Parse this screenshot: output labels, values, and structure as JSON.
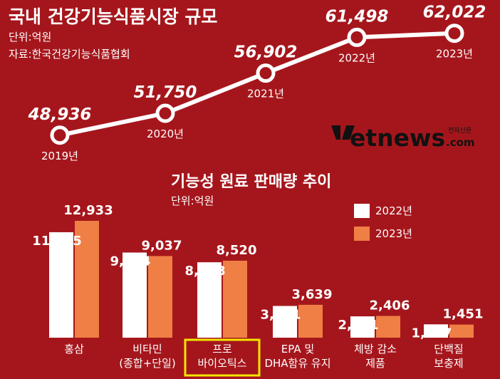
{
  "brand": {
    "logo_text": "etnews",
    "logo_suffix": ".com",
    "logo_small": "전자신문"
  },
  "chart_data": [
    {
      "type": "line",
      "title": "국내 건강기능식품시장 규모",
      "unit": "단위:억원",
      "source": "자료:한국건강기능식품협회",
      "x": [
        "2019년",
        "2020년",
        "2021년",
        "2022년",
        "2023년"
      ],
      "values": [
        48936,
        51750,
        56902,
        61498,
        62022
      ],
      "value_labels": [
        "48,936",
        "51,750",
        "56,902",
        "61,498",
        "62,022"
      ],
      "colors": {
        "line": "#ffffff",
        "marker_fill": "#a5161c"
      }
    },
    {
      "type": "bar",
      "title": "기능성 원료 판매량 추이",
      "unit": "단위:억원",
      "categories": [
        {
          "lines": [
            "홍삼"
          ]
        },
        {
          "lines": [
            "비타민",
            "(종합+단일)"
          ]
        },
        {
          "lines": [
            "프로",
            "바이오틱스"
          ],
          "highlight": true
        },
        {
          "lines": [
            "EPA 및",
            "DHA함유 유지"
          ]
        },
        {
          "lines": [
            "체방 감소",
            "제품"
          ]
        },
        {
          "lines": [
            "단백질",
            "보충제"
          ]
        }
      ],
      "series": [
        {
          "name": "2022년",
          "color": "#ffffff",
          "values": [
            11675,
            9424,
            8348,
            3511,
            2361,
            1477
          ],
          "labels": [
            "11,675",
            "9,424",
            "8,348",
            "3,511",
            "2,361",
            "1,477"
          ]
        },
        {
          "name": "2023년",
          "color": "#ef7f45",
          "values": [
            12933,
            9037,
            8520,
            3639,
            2406,
            1451
          ],
          "labels": [
            "12,933",
            "9,037",
            "8,520",
            "3,639",
            "2,406",
            "1,451"
          ]
        }
      ],
      "highlight_color": "#f2e600"
    }
  ]
}
